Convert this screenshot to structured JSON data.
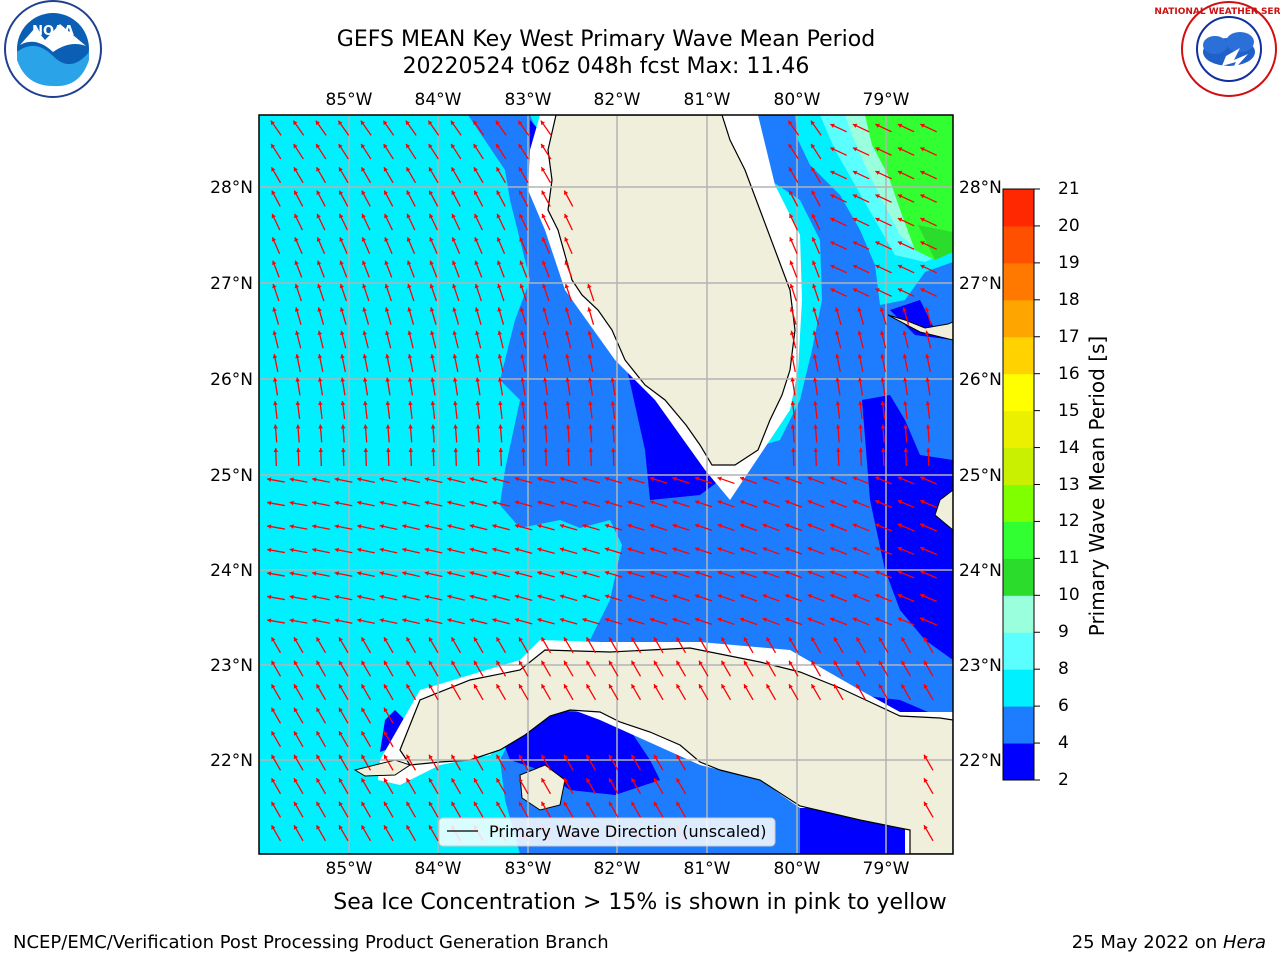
{
  "title_line1": "GEFS MEAN Key West Primary Wave Mean Period",
  "title_line2": "20220524 t06z 048h fcst   Max: 11.46",
  "lon_labels": [
    "85°W",
    "84°W",
    "83°W",
    "82°W",
    "81°W",
    "80°W",
    "79°W"
  ],
  "lat_labels": [
    "28°N",
    "27°N",
    "26°N",
    "25°N",
    "24°N",
    "23°N",
    "22°N"
  ],
  "legend_label": "Primary Wave Direction (unscaled)",
  "colorbar": {
    "title": "Primary Wave Mean Period [s]",
    "ticks": [
      "2",
      "4",
      "6",
      "8",
      "9",
      "10",
      "11",
      "12",
      "13",
      "14",
      "15",
      "16",
      "17",
      "18",
      "19",
      "20",
      "21"
    ],
    "colors": [
      "#0000ff",
      "#1e7cff",
      "#00f0ff",
      "#5cffff",
      "#9affdc",
      "#2cdc2c",
      "#32ff32",
      "#80ff00",
      "#c8f000",
      "#ebf000",
      "#ffff00",
      "#ffd200",
      "#ffa500",
      "#ff7800",
      "#ff5000",
      "#ff2800",
      "#ff0000"
    ]
  },
  "arrow_color": "#ff0000",
  "ocean_colors": {
    "period_2_4": "#0000ff",
    "period_4_6": "#1e7cff",
    "period_6_8": "#00f0ff",
    "period_8_9": "#5cffff",
    "period_9_10": "#9affdc",
    "period_10_11": "#32ff32"
  },
  "land_color": "#efefdc",
  "sea_ice_note": "Sea Ice Concentration > 15% is shown in pink to yellow",
  "credit_left": "NCEP/EMC/Verification Post Processing Product Generation Branch",
  "credit_date": "25 May 2022 on ",
  "credit_host": "Hera",
  "logos": {
    "left": "NOAA",
    "right_text": "NATIONAL WEATHER SERVICE"
  }
}
